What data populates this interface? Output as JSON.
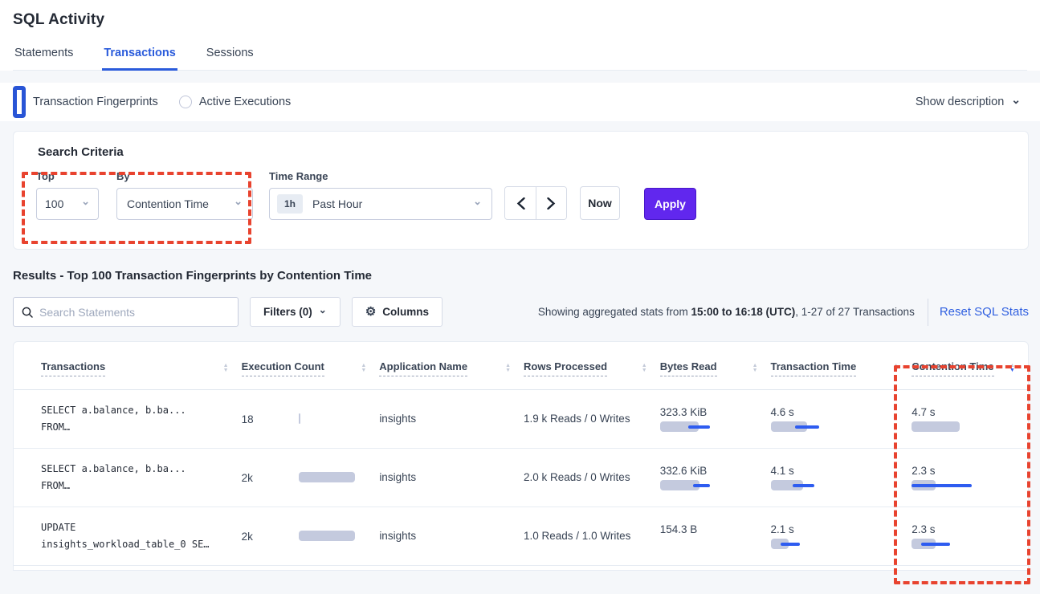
{
  "page": {
    "title": "SQL Activity"
  },
  "tabs": [
    {
      "label": "Statements"
    },
    {
      "label": "Transactions"
    },
    {
      "label": "Sessions"
    }
  ],
  "view_toggle": {
    "fingerprints_label": "Transaction Fingerprints",
    "active_exec_label": "Active Executions",
    "show_description_label": "Show description"
  },
  "search_criteria": {
    "heading": "Search Criteria",
    "top_label": "Top",
    "top_value": "100",
    "by_label": "By",
    "by_value": "Contention Time",
    "time_range_label": "Time Range",
    "time_range_badge": "1h",
    "time_range_value": "Past Hour",
    "now_label": "Now",
    "apply_label": "Apply"
  },
  "results": {
    "heading": "Results - Top 100 Transaction Fingerprints by Contention Time",
    "search_placeholder": "Search Statements",
    "filters_label": "Filters (0)",
    "columns_label": "Columns",
    "stats_prefix": "Showing aggregated stats from ",
    "stats_bold": "15:00 to 16:18 (UTC)",
    "stats_suffix": ", 1-27 of 27 Transactions",
    "reset_label": "Reset SQL Stats"
  },
  "table": {
    "headers": [
      {
        "label": "Transactions",
        "sort": "none"
      },
      {
        "label": "Execution Count",
        "sort": "none"
      },
      {
        "label": "Application Name",
        "sort": "none"
      },
      {
        "label": "Rows Processed",
        "sort": "none"
      },
      {
        "label": "Bytes Read",
        "sort": "none"
      },
      {
        "label": "Transaction Time",
        "sort": "none"
      },
      {
        "label": "Contention Time",
        "sort": "desc"
      }
    ],
    "rows": [
      {
        "query_line1": "SELECT a.balance, b.ba...",
        "query_line2": "FROM…",
        "exec_count": "18",
        "exec_bar": {
          "bar": 2,
          "line": null
        },
        "app_name": "insights",
        "rows_processed": "1.9 k Reads / 0 Writes",
        "bytes_read": "323.3 KiB",
        "bytes_bar": {
          "bar": 48,
          "line": [
            35,
            27
          ]
        },
        "txn_time": "4.6 s",
        "txn_bar": {
          "bar": 45,
          "line": [
            30,
            30
          ]
        },
        "contention_time": "4.7 s",
        "contention_bar": {
          "bar": 60,
          "line": null
        }
      },
      {
        "query_line1": "SELECT a.balance, b.ba...",
        "query_line2": "FROM…",
        "exec_count": "2k",
        "exec_bar": {
          "bar": 70,
          "line": null
        },
        "app_name": "insights",
        "rows_processed": "2.0 k Reads / 0 Writes",
        "bytes_read": "332.6 KiB",
        "bytes_bar": {
          "bar": 49,
          "line": [
            41,
            21
          ]
        },
        "txn_time": "4.1 s",
        "txn_bar": {
          "bar": 40,
          "line": [
            27,
            27
          ]
        },
        "contention_time": "2.3 s",
        "contention_bar": {
          "bar": 30,
          "line": [
            0,
            75
          ]
        }
      },
      {
        "query_line1": "UPDATE",
        "query_line2": "insights_workload_table_0 SE…",
        "exec_count": "2k",
        "exec_bar": {
          "bar": 70,
          "line": null
        },
        "app_name": "insights",
        "rows_processed": "1.0 Reads / 1.0 Writes",
        "bytes_read": "154.3 B",
        "bytes_bar": null,
        "txn_time": "2.1 s",
        "txn_bar": {
          "bar": 22,
          "line": [
            12,
            24
          ]
        },
        "contention_time": "2.3 s",
        "contention_bar": {
          "bar": 30,
          "line": [
            12,
            36
          ]
        }
      }
    ]
  },
  "annotation": {
    "color": "#e8432f"
  },
  "colors": {
    "accent_blue": "#2a5bdb",
    "bar_gray": "#c4cade",
    "bar_line_blue": "#2e5cf0",
    "apply_purple": "#6127ee"
  }
}
